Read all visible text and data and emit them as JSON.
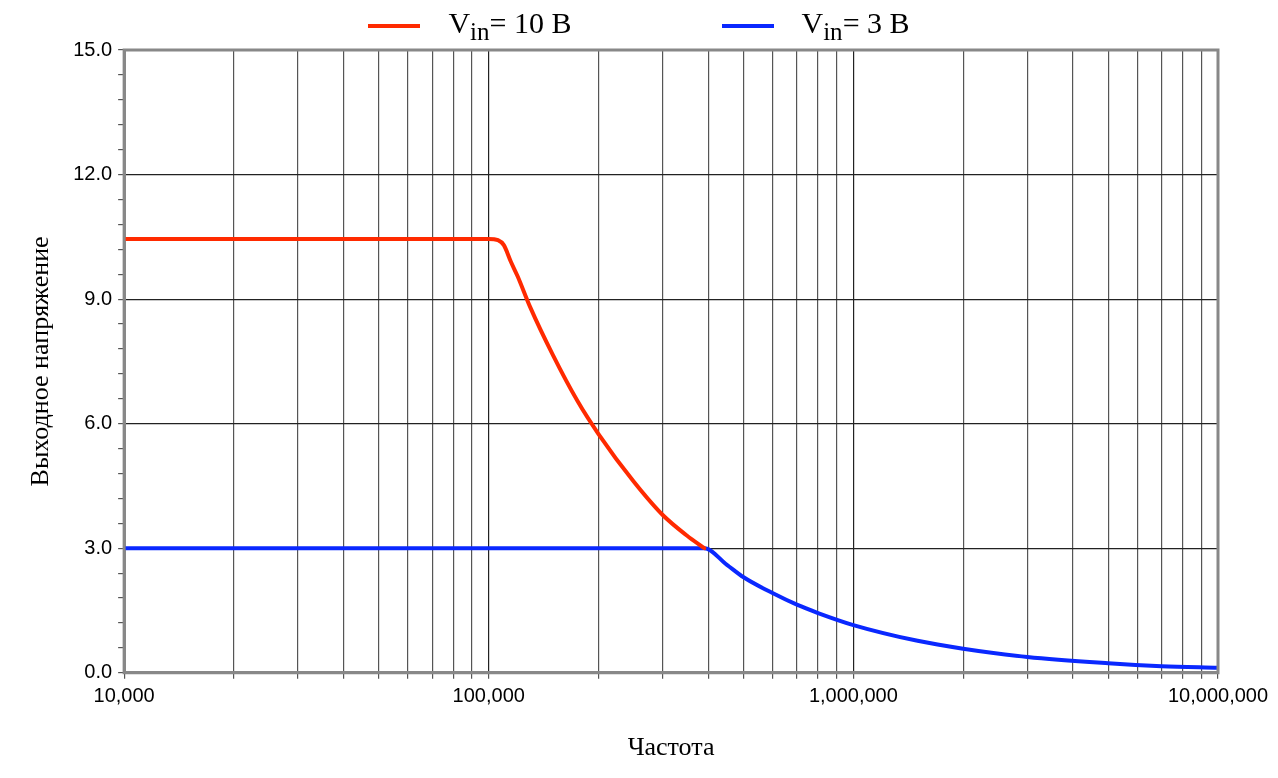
{
  "chart_data": {
    "type": "line",
    "xlabel": "Частота",
    "ylabel": "Выходное напряжение",
    "legend": "top",
    "grid": true,
    "log": "x",
    "marker": "none",
    "line_style": "solid",
    "xlim": [
      10000,
      10000000
    ],
    "xticks": [
      {
        "value": 10000,
        "label": "10,000"
      },
      {
        "value": 20000,
        "label": null
      },
      {
        "value": 30000,
        "label": null
      },
      {
        "value": 40000,
        "label": null
      },
      {
        "value": 50000,
        "label": null
      },
      {
        "value": 60000,
        "label": null
      },
      {
        "value": 70000,
        "label": null
      },
      {
        "value": 80000,
        "label": null
      },
      {
        "value": 90000,
        "label": null
      },
      {
        "value": 100000,
        "label": "100,000"
      },
      {
        "value": 200000,
        "label": null
      },
      {
        "value": 300000,
        "label": null
      },
      {
        "value": 400000,
        "label": null
      },
      {
        "value": 500000,
        "label": null
      },
      {
        "value": 600000,
        "label": null
      },
      {
        "value": 700000,
        "label": null
      },
      {
        "value": 800000,
        "label": null
      },
      {
        "value": 900000,
        "label": null
      },
      {
        "value": 1000000,
        "label": "1,000,000"
      },
      {
        "value": 2000000,
        "label": null
      },
      {
        "value": 3000000,
        "label": null
      },
      {
        "value": 4000000,
        "label": null
      },
      {
        "value": 5000000,
        "label": null
      },
      {
        "value": 6000000,
        "label": null
      },
      {
        "value": 7000000,
        "label": null
      },
      {
        "value": 8000000,
        "label": null
      },
      {
        "value": 9000000,
        "label": null
      },
      {
        "value": 10000000,
        "label": "10,000,000"
      }
    ],
    "ylim": [
      0,
      15
    ],
    "yticks": [
      {
        "value": 0,
        "label": "0.0"
      },
      {
        "value": 0.6,
        "label": null
      },
      {
        "value": 1.2,
        "label": null
      },
      {
        "value": 1.8,
        "label": null
      },
      {
        "value": 2.4,
        "label": null
      },
      {
        "value": 3,
        "label": "3.0"
      },
      {
        "value": 3.6,
        "label": null
      },
      {
        "value": 4.2,
        "label": null
      },
      {
        "value": 4.8,
        "label": null
      },
      {
        "value": 5.4,
        "label": null
      },
      {
        "value": 6,
        "label": "6.0"
      },
      {
        "value": 6.6,
        "label": null
      },
      {
        "value": 7.2,
        "label": null
      },
      {
        "value": 7.8,
        "label": null
      },
      {
        "value": 8.4,
        "label": null
      },
      {
        "value": 9,
        "label": "9.0"
      },
      {
        "value": 9.6,
        "label": null
      },
      {
        "value": 10.2,
        "label": null
      },
      {
        "value": 10.8,
        "label": null
      },
      {
        "value": 11.4,
        "label": null
      },
      {
        "value": 12,
        "label": "12.0"
      },
      {
        "value": 12.6,
        "label": null
      },
      {
        "value": 13.2,
        "label": null
      },
      {
        "value": 13.8,
        "label": null
      },
      {
        "value": 14.4,
        "label": null
      },
      {
        "value": 15,
        "label": "15.0"
      }
    ],
    "series": [
      {
        "name": "V$_{in}$= 10 B",
        "color": "#ff2a00",
        "x": [
          10000,
          50000,
          100000,
          106000,
          110000,
          115000,
          120000,
          130000,
          150000,
          175000,
          200000,
          250000,
          300000,
          350000,
          390000
        ],
        "values": [
          10.45,
          10.45,
          10.45,
          10.42,
          10.3,
          9.9,
          9.55,
          8.8,
          7.65,
          6.55,
          5.75,
          4.6,
          3.8,
          3.3,
          3.0
        ]
      },
      {
        "name": "V$_{in}$= 3 B",
        "color": "#0a28ff",
        "x": [
          10000,
          100000,
          390000,
          450000,
          500000,
          600000,
          700000,
          800000,
          1000000,
          1500000,
          2000000,
          3000000,
          5000000,
          7000000,
          10000000
        ],
        "values": [
          3.0,
          3.0,
          3.0,
          2.6,
          2.3,
          1.92,
          1.64,
          1.44,
          1.15,
          0.77,
          0.58,
          0.38,
          0.23,
          0.16,
          0.12
        ]
      }
    ]
  }
}
